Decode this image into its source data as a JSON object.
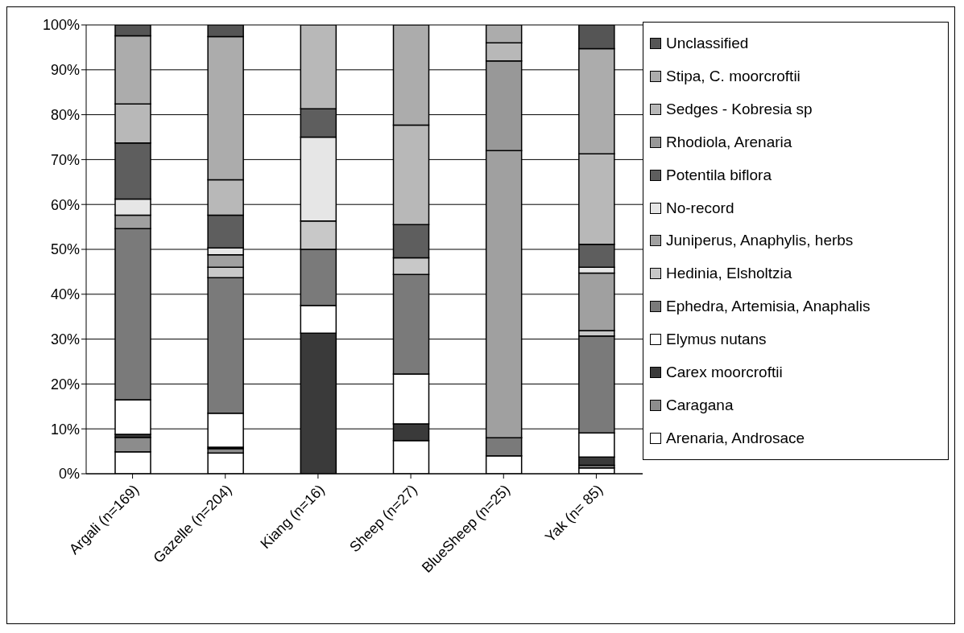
{
  "chart_data": {
    "type": "bar",
    "stacked": true,
    "categories": [
      "Argali  (n=169)",
      "Gazelle (n=204)",
      "Kiang (n=16)",
      "Sheep (n=27)",
      "BlueSheep (n=25)",
      "Yak (n= 85)"
    ],
    "series": [
      {
        "name": "Arenaria, Androsace",
        "color": "#ffffff",
        "values": [
          4.9,
          4.6,
          0,
          7.4,
          4,
          1.3
        ]
      },
      {
        "name": "Caragana",
        "color": "#8c8c8c",
        "values": [
          3.2,
          1.0,
          0,
          0,
          0,
          0.6
        ]
      },
      {
        "name": "Carex moorcroftii",
        "color": "#3a3a3a",
        "values": [
          0.7,
          0.3,
          31.3,
          3.7,
          0,
          1.8
        ]
      },
      {
        "name": "Elymus nutans",
        "color": "#ffffff",
        "values": [
          7.7,
          7.6,
          6.2,
          11.1,
          0,
          5.4
        ]
      },
      {
        "name": "Ephedra, Artemisia, Anaphalis",
        "color": "#7a7a7a",
        "values": [
          38.1,
          30.2,
          12.5,
          22.2,
          4,
          21.6
        ]
      },
      {
        "name": "Hedinia, Elsholtzia",
        "color": "#c8c8c8",
        "values": [
          0,
          2.3,
          6.3,
          3.7,
          0,
          1.2
        ]
      },
      {
        "name": "Juniperus, Anaphylis, herbs",
        "color": "#a0a0a0",
        "values": [
          3.0,
          2.8,
          0,
          0,
          64,
          12.8
        ]
      },
      {
        "name": "No-record",
        "color": "#e6e6e6",
        "values": [
          3.6,
          1.5,
          18.7,
          0,
          0,
          1.3
        ]
      },
      {
        "name": "Potentila biflora",
        "color": "#5e5e5e",
        "values": [
          12.5,
          7.3,
          6.3,
          7.4,
          0,
          5.1
        ]
      },
      {
        "name": "Rhodiola, Arenaria",
        "color": "#989898",
        "values": [
          0,
          0,
          0,
          0,
          20,
          0
        ]
      },
      {
        "name": "Sedges - Kobresia sp",
        "color": "#b8b8b8",
        "values": [
          8.7,
          7.9,
          18.7,
          22.2,
          4,
          20.2
        ]
      },
      {
        "name": "Stipa, C. moorcroftii",
        "color": "#acacac",
        "values": [
          15.2,
          31.9,
          0,
          22.3,
          4,
          23.4
        ]
      },
      {
        "name": "Unclassified",
        "color": "#555555",
        "values": [
          2.4,
          2.6,
          0,
          0,
          0,
          5.3
        ]
      }
    ],
    "ylim": [
      0,
      100
    ],
    "yticks": [
      {
        "value": 0,
        "label": "0%"
      },
      {
        "value": 10,
        "label": "10%"
      },
      {
        "value": 20,
        "label": "20%"
      },
      {
        "value": 30,
        "label": "30%"
      },
      {
        "value": 40,
        "label": "40%"
      },
      {
        "value": 50,
        "label": "50%"
      },
      {
        "value": 60,
        "label": "60%"
      },
      {
        "value": 70,
        "label": "70%"
      },
      {
        "value": 80,
        "label": "80%"
      },
      {
        "value": 90,
        "label": "90%"
      },
      {
        "value": 100,
        "label": "100%"
      }
    ],
    "grid": "y",
    "legend": "right"
  }
}
